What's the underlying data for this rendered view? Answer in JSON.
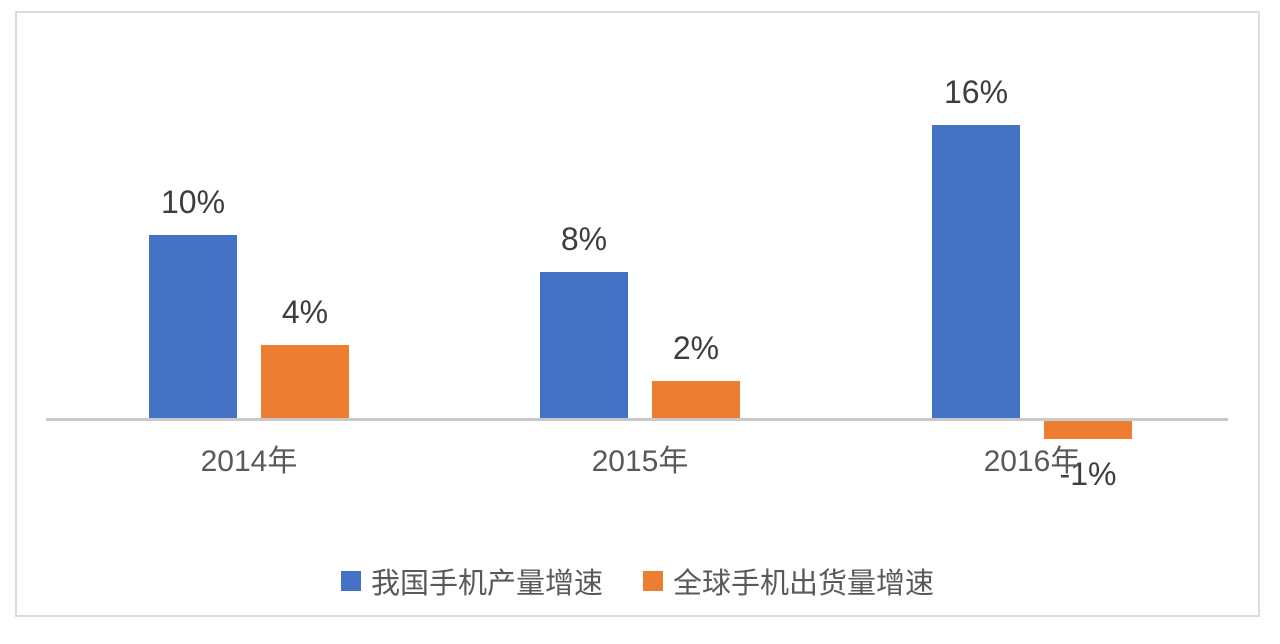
{
  "chart_data": {
    "type": "bar",
    "categories": [
      "2014年",
      "2015年",
      "2016年"
    ],
    "series": [
      {
        "name": "我国手机产量增速",
        "color": "#4472C4",
        "values": [
          10,
          8,
          16
        ],
        "labels": [
          "10%",
          "8%",
          "16%"
        ]
      },
      {
        "name": "全球手机出货量增速",
        "color": "#ED7D31",
        "values": [
          4,
          2,
          -1
        ],
        "labels": [
          "4%",
          "2%",
          "-1%"
        ]
      }
    ],
    "title": "",
    "xlabel": "",
    "ylabel": "",
    "ylim": [
      -2,
      18
    ],
    "grid": false,
    "legend_position": "bottom",
    "colors": {
      "axis_line": "#C9C9C9",
      "frame_border": "#DCDCDC",
      "value_label_text": "#3D3D3D",
      "category_label_text": "#595959",
      "legend_text": "#595959",
      "background": "#FFFFFF"
    }
  }
}
